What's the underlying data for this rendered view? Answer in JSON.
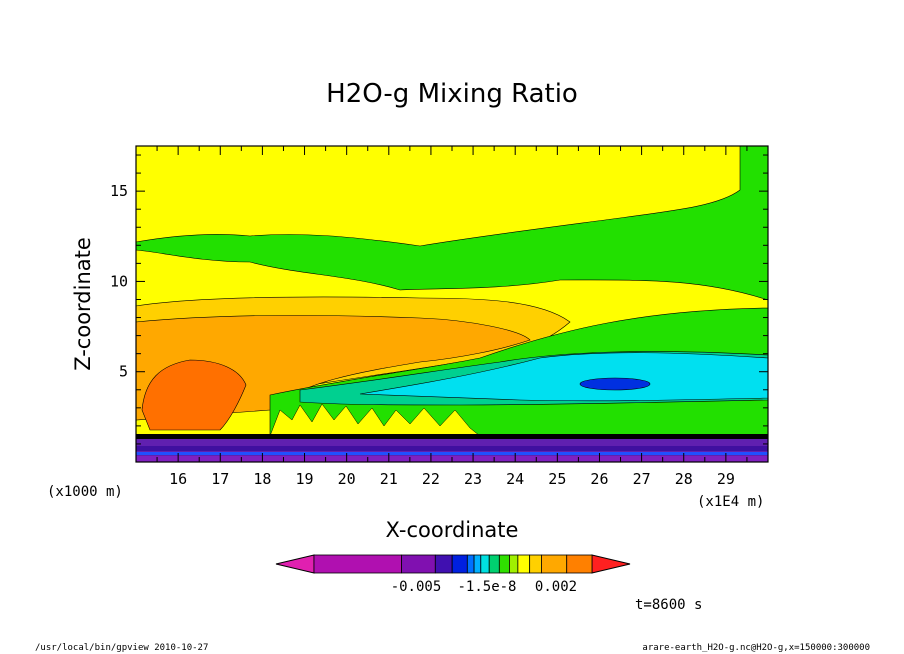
{
  "chart_data": {
    "type": "heatmap",
    "title": "H2O-g Mixing Ratio",
    "xlabel": "X-coordinate",
    "ylabel": "Z-coordinate",
    "x_scale_note": "(x1E4 m)",
    "y_scale_note": "(x1000 m)",
    "x_ticks": [
      "16",
      "17",
      "18",
      "19",
      "20",
      "21",
      "22",
      "23",
      "24",
      "25",
      "26",
      "27",
      "28",
      "29"
    ],
    "y_ticks": [
      "5",
      "10",
      "15"
    ],
    "xlim": [
      15.0,
      30.0
    ],
    "ylim": [
      0,
      17.5
    ],
    "colorbar_labels": [
      "-0.005",
      "-1.5e-8",
      "0.002"
    ],
    "colorbar_colors": [
      "#e020b0",
      "#b010b0",
      "#8010b0",
      "#4010b0",
      "#0020e0",
      "#0070ff",
      "#00b0ff",
      "#00e0e0",
      "#00d070",
      "#30e000",
      "#a0f000",
      "#ffff00",
      "#ffd000",
      "#ffa800",
      "#ff8000",
      "#ff2020"
    ],
    "time_label": "t=8600 s"
  },
  "footer": {
    "left": "/usr/local/bin/gpview  2010-10-27",
    "right": "arare-earth_H2O-g.nc@H2O-g,x=150000:300000"
  }
}
